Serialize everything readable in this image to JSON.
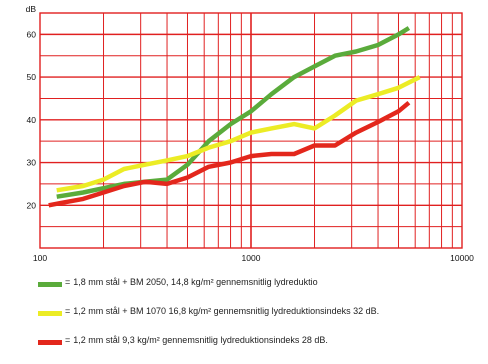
{
  "chart_data": {
    "type": "line",
    "ylabel": "dB",
    "xscale": "log",
    "xlim": [
      100,
      10000
    ],
    "ylim": [
      10,
      65
    ],
    "x_tick_labels": [
      "100",
      "1000",
      "10000"
    ],
    "y_tick_labels": [
      "20",
      "30",
      "40",
      "50",
      "60"
    ],
    "grid": true,
    "grid_color": "#e02020",
    "series": [
      {
        "name": "= 1,8 mm stål + BM 2050, 14,8 kg/m² gennemsnitlig lydreduktio",
        "color": "#5aab3b",
        "x": [
          120,
          160,
          200,
          250,
          315,
          400,
          500,
          630,
          800,
          1000,
          1250,
          1600,
          2000,
          2500,
          3150,
          4000,
          5000,
          5600
        ],
        "y": [
          22,
          23,
          24,
          25,
          25.5,
          26,
          29.5,
          35,
          39,
          42,
          46,
          50,
          52.5,
          55,
          56,
          57.5,
          60,
          61.5
        ]
      },
      {
        "name": "= 1,2 mm stål + BM 1070 16,8 kg/m² gennemsnitlig lydreduktionsindeks 32 dB.",
        "color": "#ecec25",
        "x": [
          120,
          160,
          200,
          250,
          315,
          400,
          500,
          630,
          800,
          1000,
          1250,
          1600,
          2000,
          2500,
          3150,
          4000,
          5000,
          6300
        ],
        "y": [
          23.5,
          24.5,
          26,
          28.5,
          29.5,
          30.5,
          31.5,
          33.5,
          35,
          37,
          38,
          39,
          38,
          41,
          44.5,
          46,
          47.5,
          50
        ]
      },
      {
        "name": "= 1,2 mm stål 9,3 kg/m² gennemsnitlig lydreduktionsindeks 28 dB.",
        "color": "#e3271c",
        "x": [
          110,
          125,
          160,
          200,
          250,
          315,
          400,
          500,
          630,
          800,
          1000,
          1250,
          1600,
          2000,
          2500,
          3150,
          4000,
          5000,
          5600
        ],
        "y": [
          20,
          20.5,
          21.5,
          23,
          24.5,
          25.5,
          25,
          26.5,
          29,
          30,
          31.5,
          32,
          32,
          34,
          34,
          37,
          39.5,
          42,
          44
        ]
      }
    ]
  },
  "legend": [
    {
      "eq": "=",
      "text": "1,8 mm stål + BM 2050, 14,8 kg/m² gennemsnitlig lydreduktio",
      "color": "#5aab3b"
    },
    {
      "eq": "=",
      "text": "1,2 mm stål + BM 1070 16,8 kg/m² gennemsnitlig lydreduktionsindeks 32 dB.",
      "color": "#ecec25"
    },
    {
      "eq": "=",
      "text": "1,2 mm stål 9,3 kg/m² gennemsnitlig lydreduktionsindeks 28 dB.",
      "color": "#e3271c"
    }
  ]
}
